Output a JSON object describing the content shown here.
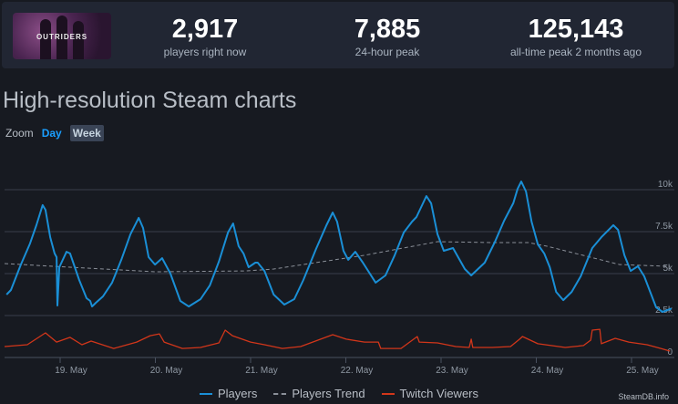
{
  "header": {
    "game_logo_text": "OUTRIDERS",
    "stats": [
      {
        "value": "2,917",
        "label": "players right now"
      },
      {
        "value": "7,885",
        "label": "24-hour peak"
      },
      {
        "value": "125,143",
        "label": "all-time peak 2 months ago"
      }
    ]
  },
  "section_title": "High-resolution Steam charts",
  "zoom": {
    "label": "Zoom",
    "options": [
      "Day",
      "Week"
    ],
    "active": "Week"
  },
  "credit": "SteamDB.info",
  "colors": {
    "players": "#1a8fd6",
    "trend": "#8a8f98",
    "twitch": "#d2361a"
  },
  "chart_data": {
    "type": "line",
    "x_ticks": [
      "19. May",
      "20. May",
      "21. May",
      "22. May",
      "23. May",
      "24. May",
      "25. May"
    ],
    "y_ticks": [
      "10k",
      "7.5k",
      "5k",
      "2.5k",
      "0"
    ],
    "y_tick_values": [
      10000,
      7500,
      5000,
      2500,
      0
    ],
    "ylim": [
      0,
      10000
    ],
    "grid": true,
    "legend_position": "bottom",
    "series": [
      {
        "name": "Players",
        "style": "solid",
        "points": [
          [
            "18 May 10:30",
            3750
          ],
          [
            "18 May 11:36",
            4020
          ],
          [
            "18 May 14:06",
            5540
          ],
          [
            "18 May 16:24",
            6790
          ],
          [
            "18 May 18:00",
            7880
          ],
          [
            "18 May 19:36",
            9080
          ],
          [
            "18 May 20:18",
            8800
          ],
          [
            "18 May 21:30",
            7170
          ],
          [
            "18 May 22:36",
            6200
          ],
          [
            "18 May 23:06",
            5980
          ],
          [
            "18 May 23:18",
            3100
          ],
          [
            "18 May 23:48",
            5380
          ],
          [
            "19 May 01:36",
            6300
          ],
          [
            "19 May 02:30",
            6200
          ],
          [
            "19 May 04:48",
            4620
          ],
          [
            "19 May 06:40",
            3530
          ],
          [
            "19 May 07:35",
            3370
          ],
          [
            "19 May 08:02",
            3040
          ],
          [
            "19 May 09:00",
            3260
          ],
          [
            "19 May 10:48",
            3640
          ],
          [
            "19 May 13:06",
            4460
          ],
          [
            "19 May 15:24",
            5820
          ],
          [
            "19 May 17:42",
            7340
          ],
          [
            "19 May 19:48",
            8320
          ],
          [
            "19 May 20:54",
            7720
          ],
          [
            "19 May 22:18",
            5980
          ],
          [
            "19 May 23:54",
            5540
          ],
          [
            "20 May 01:42",
            5920
          ],
          [
            "20 May 03:48",
            5000
          ],
          [
            "20 May 06:18",
            3370
          ],
          [
            "20 May 08:24",
            3040
          ],
          [
            "20 May 11:24",
            3480
          ],
          [
            "20 May 13:42",
            4290
          ],
          [
            "20 May 16:00",
            5710
          ],
          [
            "20 May 18:18",
            7450
          ],
          [
            "20 May 19:36",
            7990
          ],
          [
            "20 May 21:00",
            6630
          ],
          [
            "20 May 22:12",
            6200
          ],
          [
            "20 May 23:30",
            5380
          ],
          [
            "21 May 01:12",
            5650
          ],
          [
            "21 May 01:48",
            5650
          ],
          [
            "21 May 03:30",
            5160
          ],
          [
            "21 May 05:48",
            3750
          ],
          [
            "21 May 08:30",
            3150
          ],
          [
            "21 May 11:00",
            3480
          ],
          [
            "21 May 13:18",
            4620
          ],
          [
            "21 May 16:30",
            6470
          ],
          [
            "21 May 19:06",
            7880
          ],
          [
            "21 May 20:42",
            8640
          ],
          [
            "21 May 21:48",
            8100
          ],
          [
            "21 May 23:24",
            6360
          ],
          [
            "22 May 00:36",
            5820
          ],
          [
            "22 May 02:24",
            6300
          ],
          [
            "22 May 04:18",
            5650
          ],
          [
            "22 May 07:30",
            4460
          ],
          [
            "22 May 10:00",
            4890
          ],
          [
            "22 May 12:18",
            6090
          ],
          [
            "22 May 14:36",
            7450
          ],
          [
            "22 May 16:42",
            8100
          ],
          [
            "22 May 17:48",
            8370
          ],
          [
            "22 May 20:18",
            9620
          ],
          [
            "22 May 21:30",
            9190
          ],
          [
            "22 May 23:06",
            7340
          ],
          [
            "23 May 00:42",
            6360
          ],
          [
            "23 May 03:00",
            6520
          ],
          [
            "23 May 06:00",
            5270
          ],
          [
            "23 May 07:36",
            4890
          ],
          [
            "23 May 11:00",
            5650
          ],
          [
            "23 May 13:36",
            6900
          ],
          [
            "23 May 15:54",
            8150
          ],
          [
            "23 May 18:12",
            9190
          ],
          [
            "23 May 19:18",
            10050
          ],
          [
            "23 May 20:12",
            10490
          ],
          [
            "23 May 21:24",
            9890
          ],
          [
            "23 May 22:48",
            8100
          ],
          [
            "24 May 00:24",
            6740
          ],
          [
            "24 May 02:00",
            6200
          ],
          [
            "24 May 03:24",
            5380
          ],
          [
            "24 May 05:00",
            3910
          ],
          [
            "24 May 06:48",
            3420
          ],
          [
            "24 May 08:54",
            3910
          ],
          [
            "24 May 11:12",
            4840
          ],
          [
            "24 May 14:06",
            6520
          ],
          [
            "24 May 16:24",
            7170
          ],
          [
            "24 May 19:24",
            7885
          ],
          [
            "24 May 20:36",
            7610
          ],
          [
            "24 May 22:12",
            6090
          ],
          [
            "24 May 23:48",
            5160
          ],
          [
            "25 May 01:36",
            5440
          ],
          [
            "25 May 03:12",
            4840
          ],
          [
            "25 May 06:12",
            2990
          ],
          [
            "25 May 07:48",
            2720
          ],
          [
            "25 May 10:06",
            2917
          ]
        ]
      },
      {
        "name": "Players Trend",
        "style": "dashed",
        "points": [
          [
            "18 May 10:00",
            5600
          ],
          [
            "18 May 22:36",
            5430
          ],
          [
            "19 May 23:54",
            5110
          ],
          [
            "20 May 22:48",
            5160
          ],
          [
            "21 May 05:48",
            5270
          ],
          [
            "22 May 04:42",
            6090
          ],
          [
            "22 May 23:06",
            6900
          ],
          [
            "23 May 12:54",
            6850
          ],
          [
            "23 May 22:06",
            6850
          ],
          [
            "24 May 02:42",
            6630
          ],
          [
            "24 May 21:00",
            5540
          ],
          [
            "25 May 09:42",
            5430
          ]
        ]
      },
      {
        "name": "Twitch Viewers",
        "style": "solid",
        "points": [
          [
            "18 May 10:00",
            650
          ],
          [
            "18 May 15:42",
            760
          ],
          [
            "18 May 20:18",
            1470
          ],
          [
            "18 May 23:06",
            920
          ],
          [
            "19 May 02:30",
            1200
          ],
          [
            "19 May 05:30",
            760
          ],
          [
            "19 May 07:48",
            980
          ],
          [
            "19 May 13:30",
            540
          ],
          [
            "19 May 19:18",
            920
          ],
          [
            "19 May 22:42",
            1300
          ],
          [
            "20 May 01:00",
            1410
          ],
          [
            "20 May 02:12",
            920
          ],
          [
            "20 May 06:48",
            540
          ],
          [
            "20 May 11:24",
            600
          ],
          [
            "20 May 16:00",
            870
          ],
          [
            "20 May 17:36",
            1630
          ],
          [
            "20 May 19:24",
            1300
          ],
          [
            "21 May 00:00",
            920
          ],
          [
            "21 May 03:30",
            760
          ],
          [
            "21 May 08:00",
            540
          ],
          [
            "21 May 12:36",
            650
          ],
          [
            "21 May 20:42",
            1360
          ],
          [
            "22 May 00:06",
            1090
          ],
          [
            "22 May 04:42",
            920
          ],
          [
            "22 May 08:12",
            920
          ],
          [
            "22 May 08:48",
            540
          ],
          [
            "22 May 13:54",
            540
          ],
          [
            "22 May 18:00",
            1250
          ],
          [
            "22 May 18:30",
            920
          ],
          [
            "22 May 23:06",
            870
          ],
          [
            "23 May 03:42",
            650
          ],
          [
            "23 May 07:06",
            600
          ],
          [
            "23 May 07:36",
            1090
          ],
          [
            "23 May 08:00",
            600
          ],
          [
            "23 May 12:54",
            600
          ],
          [
            "23 May 17:30",
            650
          ],
          [
            "23 May 19:48",
            1090
          ],
          [
            "23 May 20:30",
            1250
          ],
          [
            "24 May 00:24",
            820
          ],
          [
            "24 May 07:18",
            600
          ],
          [
            "24 May 11:54",
            710
          ],
          [
            "24 May 13:42",
            1030
          ],
          [
            "24 May 14:06",
            1630
          ],
          [
            "24 May 16:00",
            1680
          ],
          [
            "24 May 16:24",
            820
          ],
          [
            "24 May 19:54",
            1140
          ],
          [
            "24 May 23:18",
            920
          ],
          [
            "25 May 03:54",
            760
          ],
          [
            "25 May 07:24",
            540
          ],
          [
            "25 May 09:42",
            380
          ]
        ]
      }
    ]
  }
}
